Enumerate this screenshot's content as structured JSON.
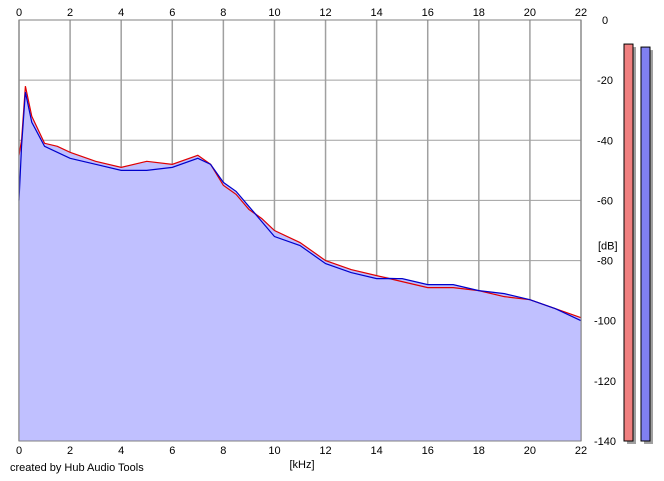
{
  "chart_data": {
    "type": "area",
    "title": "",
    "xlabel": "[kHz]",
    "ylabel": "[dB]",
    "xlim": [
      0,
      22
    ],
    "ylim": [
      -140,
      0
    ],
    "x_ticks": [
      0,
      2,
      4,
      6,
      8,
      10,
      12,
      14,
      16,
      18,
      20,
      22
    ],
    "y_ticks": [
      0,
      -20,
      -40,
      -60,
      -80,
      -100,
      -120,
      -140
    ],
    "grid": true,
    "series": [
      {
        "color": "#e00000",
        "x": [
          0,
          0.1,
          0.25,
          0.5,
          1,
          1.5,
          2,
          3,
          4,
          5,
          6,
          7,
          7.5,
          8,
          8.5,
          9,
          9.5,
          10,
          11,
          12,
          13,
          14,
          15,
          16,
          17,
          18,
          19,
          20,
          21,
          22
        ],
        "y": [
          -45,
          -40,
          -22,
          -32,
          -41,
          -42,
          -44,
          -47,
          -49,
          -47,
          -48,
          -45,
          -48,
          -55,
          -58,
          -63,
          -66,
          -70,
          -74,
          -80,
          -83,
          -85,
          -87,
          -89,
          -89,
          -90,
          -92,
          -93,
          -96,
          -99
        ]
      },
      {
        "color": "#0000cc",
        "x": [
          0,
          0.1,
          0.25,
          0.5,
          1,
          1.5,
          2,
          3,
          4,
          5,
          6,
          7,
          7.5,
          8,
          8.5,
          9,
          9.5,
          10,
          11,
          12,
          13,
          14,
          15,
          16,
          17,
          18,
          19,
          20,
          21,
          22
        ],
        "y": [
          -60,
          -42,
          -24,
          -34,
          -42,
          -44,
          -46,
          -48,
          -50,
          -50,
          -49,
          -46,
          -48,
          -54,
          -57,
          -62,
          -67,
          -72,
          -75,
          -81,
          -84,
          -86,
          -86,
          -88,
          -88,
          -90,
          -91,
          -93,
          -96,
          -100
        ]
      }
    ],
    "meters": [
      {
        "color": "#f08080",
        "level_db": -8
      },
      {
        "color": "#8080f0",
        "level_db": -9
      }
    ]
  },
  "footer": {
    "credit": "created by Hub Audio Tools"
  }
}
